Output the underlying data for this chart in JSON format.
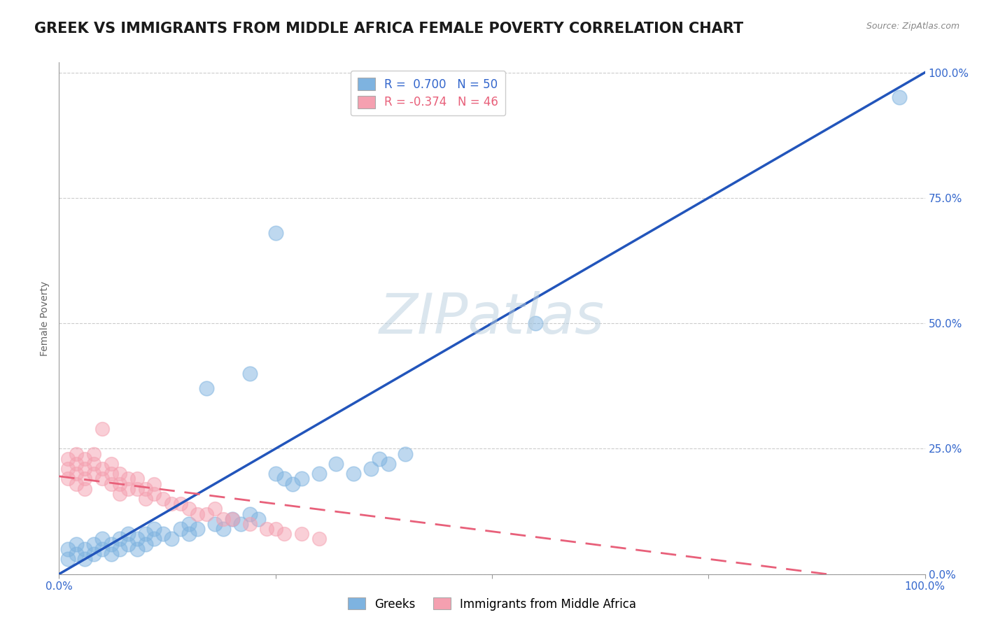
{
  "title": "GREEK VS IMMIGRANTS FROM MIDDLE AFRICA FEMALE POVERTY CORRELATION CHART",
  "source_text": "Source: ZipAtlas.com",
  "ylabel": "Female Poverty",
  "watermark": "ZIPatlas",
  "xlim": [
    0,
    1
  ],
  "ylim": [
    0,
    1.02
  ],
  "y_tick_labels": [
    "0.0%",
    "25.0%",
    "50.0%",
    "75.0%",
    "100.0%"
  ],
  "y_tick_positions": [
    0.0,
    0.25,
    0.5,
    0.75,
    1.0
  ],
  "legend1_label": "R =  0.700   N = 50",
  "legend2_label": "R = -0.374   N = 46",
  "blue_color": "#7EB3E0",
  "pink_color": "#F5A0B0",
  "blue_line_color": "#2255BB",
  "pink_line_color": "#E8607A",
  "title_fontsize": 15,
  "axis_label_fontsize": 10,
  "tick_label_fontsize": 11,
  "legend_fontsize": 12,
  "blue_slope": 1.0,
  "blue_intercept": 0.0,
  "pink_slope": -0.22,
  "pink_intercept": 0.195,
  "blues_x": [
    0.01,
    0.01,
    0.02,
    0.02,
    0.03,
    0.03,
    0.04,
    0.04,
    0.05,
    0.05,
    0.06,
    0.06,
    0.07,
    0.07,
    0.08,
    0.08,
    0.09,
    0.09,
    0.1,
    0.1,
    0.11,
    0.11,
    0.12,
    0.13,
    0.14,
    0.15,
    0.15,
    0.16,
    0.17,
    0.18,
    0.19,
    0.2,
    0.21,
    0.22,
    0.23,
    0.25,
    0.26,
    0.27,
    0.28,
    0.3,
    0.32,
    0.34,
    0.36,
    0.37,
    0.38,
    0.4,
    0.22,
    0.25,
    0.55,
    0.97
  ],
  "blues_y": [
    0.03,
    0.05,
    0.04,
    0.06,
    0.03,
    0.05,
    0.04,
    0.06,
    0.05,
    0.07,
    0.04,
    0.06,
    0.05,
    0.07,
    0.06,
    0.08,
    0.05,
    0.07,
    0.06,
    0.08,
    0.07,
    0.09,
    0.08,
    0.07,
    0.09,
    0.08,
    0.1,
    0.09,
    0.37,
    0.1,
    0.09,
    0.11,
    0.1,
    0.12,
    0.11,
    0.2,
    0.19,
    0.18,
    0.19,
    0.2,
    0.22,
    0.2,
    0.21,
    0.23,
    0.22,
    0.24,
    0.4,
    0.68,
    0.5,
    0.95
  ],
  "pinks_x": [
    0.01,
    0.01,
    0.01,
    0.02,
    0.02,
    0.02,
    0.02,
    0.03,
    0.03,
    0.03,
    0.03,
    0.04,
    0.04,
    0.04,
    0.05,
    0.05,
    0.05,
    0.06,
    0.06,
    0.06,
    0.07,
    0.07,
    0.07,
    0.08,
    0.08,
    0.09,
    0.09,
    0.1,
    0.1,
    0.11,
    0.11,
    0.12,
    0.13,
    0.14,
    0.15,
    0.16,
    0.17,
    0.18,
    0.19,
    0.2,
    0.22,
    0.24,
    0.25,
    0.26,
    0.28,
    0.3
  ],
  "pinks_y": [
    0.19,
    0.21,
    0.23,
    0.18,
    0.2,
    0.22,
    0.24,
    0.19,
    0.21,
    0.23,
    0.17,
    0.2,
    0.22,
    0.24,
    0.19,
    0.21,
    0.29,
    0.18,
    0.2,
    0.22,
    0.18,
    0.2,
    0.16,
    0.17,
    0.19,
    0.17,
    0.19,
    0.15,
    0.17,
    0.16,
    0.18,
    0.15,
    0.14,
    0.14,
    0.13,
    0.12,
    0.12,
    0.13,
    0.11,
    0.11,
    0.1,
    0.09,
    0.09,
    0.08,
    0.08,
    0.07
  ]
}
